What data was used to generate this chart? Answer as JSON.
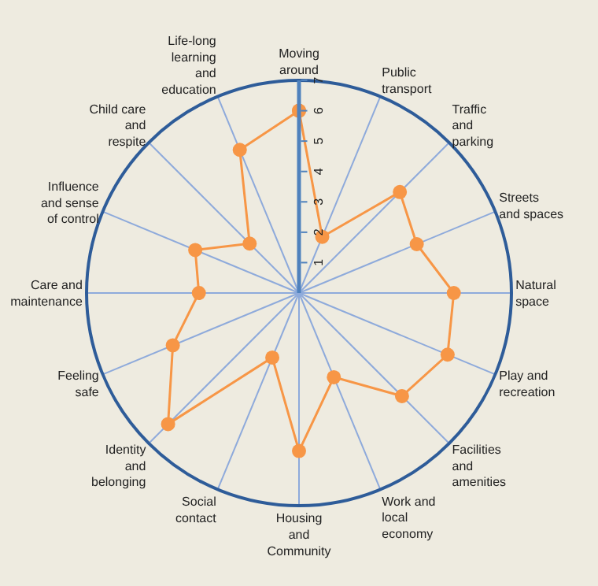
{
  "chart_data": {
    "type": "radar",
    "categories": [
      "Moving around",
      "Public transport",
      "Traffic and parking",
      "Streets and spaces",
      "Natural space",
      "Play and recreation",
      "Facilities and amenities",
      "Work and local economy",
      "Housing and Community",
      "Social contact",
      "Identity and belonging",
      "Feeling safe",
      "Care and maintenance",
      "Influence and sense of control",
      "Child care and respite",
      "Life-long learning and education"
    ],
    "series": [
      {
        "color": "#f79646",
        "values": [
          6,
          2,
          4.7,
          4.2,
          5.1,
          5.3,
          4.8,
          3,
          5.2,
          2.3,
          6.1,
          4.5,
          3.3,
          3.7,
          2.3,
          5.1
        ]
      }
    ],
    "ylim": [
      0,
      7
    ],
    "yticks": [
      1,
      2,
      3,
      4,
      5,
      6,
      7
    ],
    "grid": "x",
    "marker": "circle",
    "line_style": "solid",
    "legend": false
  }
}
